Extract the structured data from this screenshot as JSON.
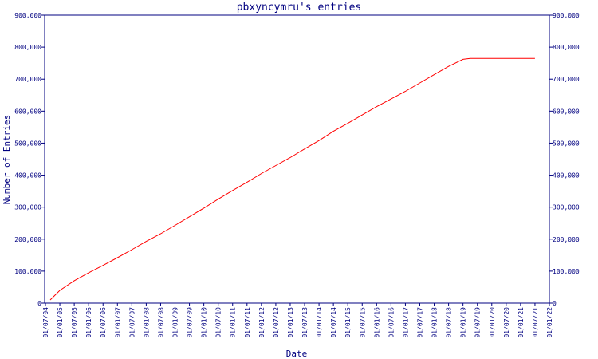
{
  "chart_data": {
    "type": "line",
    "title": "pbxyncymru's entries",
    "xlabel": "Date",
    "ylabel": "Number of Entries",
    "ylim": [
      0,
      900000
    ],
    "y_ticks": [
      0,
      100000,
      200000,
      300000,
      400000,
      500000,
      600000,
      700000,
      800000,
      900000
    ],
    "y_tick_labels": [
      "0",
      "100,000",
      "200,000",
      "300,000",
      "400,000",
      "500,000",
      "600,000",
      "700,000",
      "800,000",
      "900,000"
    ],
    "x_tick_labels": [
      "01/07/04",
      "01/01/05",
      "01/07/05",
      "01/01/06",
      "01/07/06",
      "01/01/07",
      "01/07/07",
      "01/01/08",
      "01/07/08",
      "01/01/09",
      "01/07/09",
      "01/01/10",
      "01/07/10",
      "01/01/11",
      "01/07/11",
      "01/01/12",
      "01/07/12",
      "01/01/13",
      "01/07/13",
      "01/01/14",
      "01/07/14",
      "01/01/15",
      "01/07/15",
      "01/01/16",
      "01/07/16",
      "01/01/17",
      "01/07/17",
      "01/01/18",
      "01/07/18",
      "01/01/19",
      "01/07/19",
      "01/01/20",
      "01/07/20",
      "01/01/21",
      "01/07/21",
      "01/01/22"
    ],
    "grid": false,
    "line_color": "#ff0000",
    "axis_color": "#000080",
    "series": [
      {
        "x": [
          "01/07/04",
          "01/01/05",
          "01/07/05",
          "01/01/06",
          "01/07/06",
          "01/01/07",
          "01/07/07",
          "01/01/08",
          "01/07/08",
          "01/01/09",
          "01/07/09",
          "01/01/10",
          "01/07/10",
          "01/01/11",
          "01/07/11",
          "01/01/12",
          "01/07/12",
          "01/01/13",
          "01/07/13",
          "01/01/14",
          "01/07/14",
          "01/01/15",
          "01/07/15",
          "01/01/16",
          "01/07/16",
          "01/01/17",
          "01/07/17",
          "01/01/18",
          "01/07/18",
          "01/01/19",
          "01/04/19",
          "01/07/19",
          "01/01/20",
          "01/07/20",
          "01/01/21",
          "01/07/21"
        ],
        "values": [
          10000,
          40000,
          70000,
          95000,
          118000,
          142000,
          167000,
          193000,
          217000,
          243000,
          270000,
          297000,
          325000,
          352000,
          378000,
          405000,
          430000,
          455000,
          482000,
          508000,
          537000,
          562000,
          588000,
          614000,
          638000,
          662000,
          688000,
          714000,
          740000,
          762000,
          765000,
          765000,
          765000,
          765000,
          765000,
          765000
        ]
      }
    ]
  }
}
